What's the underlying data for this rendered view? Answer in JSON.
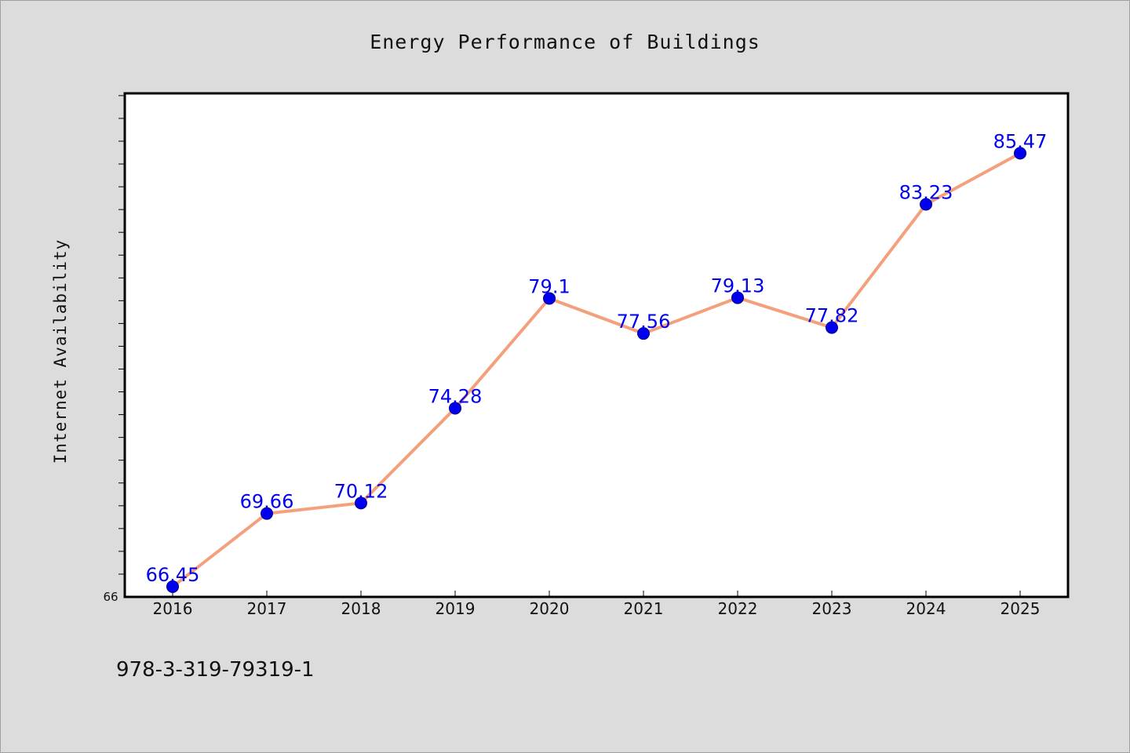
{
  "chart_data": {
    "type": "line",
    "title": "Energy Performance of Buildings",
    "xlabel": "",
    "ylabel": "Internet Availability",
    "categories": [
      "2016",
      "2017",
      "2018",
      "2019",
      "2020",
      "2021",
      "2022",
      "2023",
      "2024",
      "2025"
    ],
    "series": [
      {
        "values": [
          66.45,
          69.66,
          70.12,
          74.28,
          79.1,
          77.56,
          79.13,
          77.82,
          83.23,
          85.47
        ],
        "data_labels": [
          "66.45",
          "69.66",
          "70.12",
          "74.28",
          "79.1",
          "77.56",
          "79.13",
          "77.82",
          "83.23",
          "85.47"
        ]
      }
    ],
    "y_tick_labels": [
      "66"
    ],
    "ylim": [
      66,
      88.1
    ],
    "y_minor_tick_step": 1,
    "grid": false,
    "legend": "none",
    "colors": {
      "line": "#f4a07c",
      "marker": "#0000ee",
      "data_label": "#0000ee",
      "page_background": "#dcdcdc",
      "plot_background": "#ffffff"
    }
  },
  "footer_text": "978-3-319-79319-1"
}
